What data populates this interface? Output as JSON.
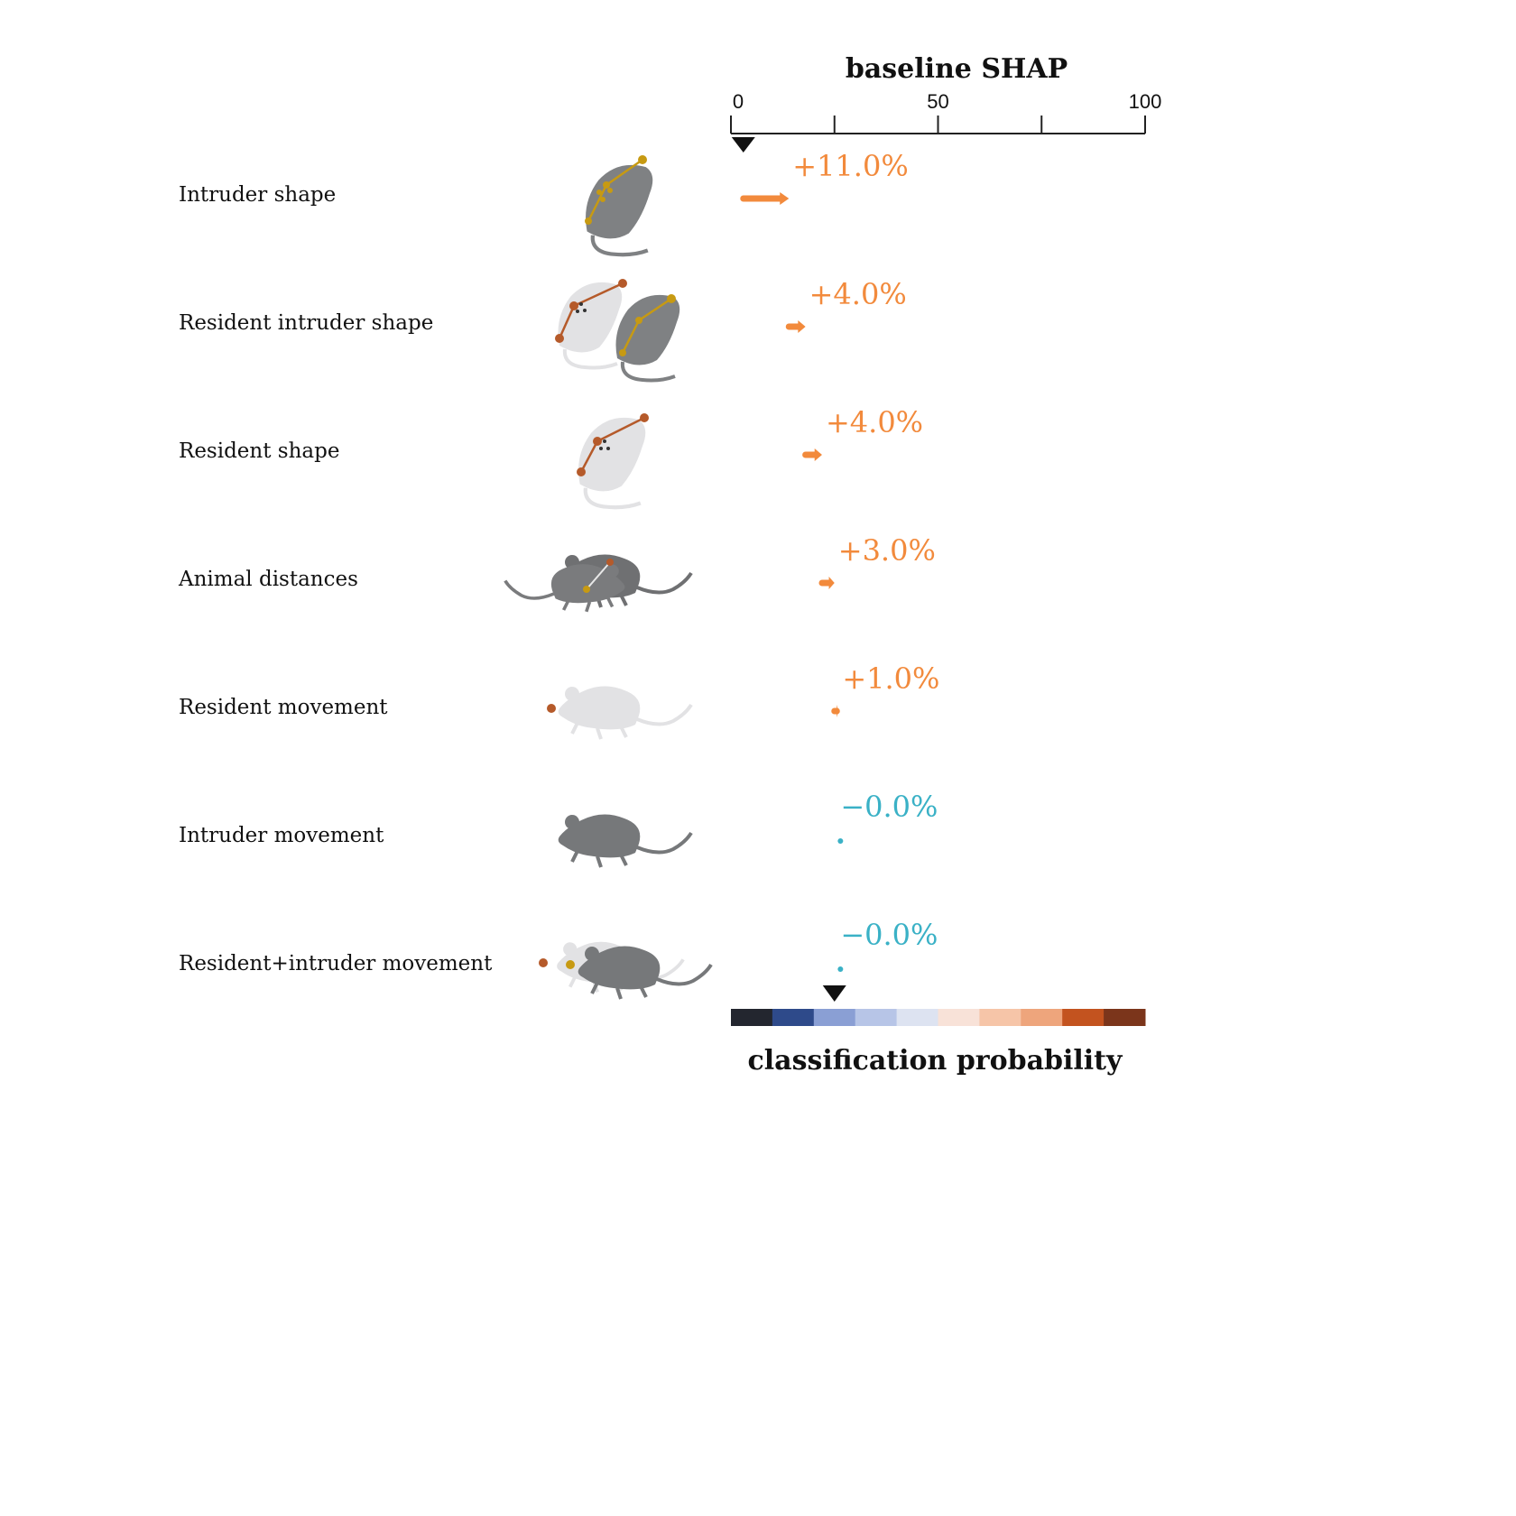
{
  "chart_data": {
    "type": "bar",
    "title": "baseline SHAP",
    "xlim": [
      0,
      100
    ],
    "x_tick_labels": [
      "0",
      "50",
      "100"
    ],
    "x_ticks": [
      0,
      25,
      50,
      75,
      100
    ],
    "baseline": 3,
    "final_value": 25,
    "colorbar_label": "classification probability",
    "colorbar_colors": [
      "#23262f",
      "#2e4a8a",
      "#8a9fd4",
      "#b7c5e7",
      "#dde3f1",
      "#f8e2d8",
      "#f6c5a8",
      "#eea57c",
      "#c3531f",
      "#7b351b"
    ],
    "positive_color": "#f28a3c",
    "negative_color": "#3ab1c6",
    "features": [
      {
        "name": "Intruder shape",
        "value_label": "+11.0%",
        "delta": 11,
        "icon": "intruder-shape-icon"
      },
      {
        "name": "Resident intruder shape",
        "value_label": "+4.0%",
        "delta": 4,
        "icon": "resident-intruder-shape-icon"
      },
      {
        "name": "Resident shape",
        "value_label": "+4.0%",
        "delta": 4,
        "icon": "resident-shape-icon"
      },
      {
        "name": "Animal distances",
        "value_label": "+3.0%",
        "delta": 3,
        "icon": "animal-distances-icon"
      },
      {
        "name": "Resident movement",
        "value_label": "+1.0%",
        "delta": 1,
        "icon": "resident-movement-icon"
      },
      {
        "name": "Intruder movement",
        "value_label": "−0.0%",
        "delta": 0,
        "icon": "intruder-movement-icon"
      },
      {
        "name": "Resident+intruder movement",
        "value_label": "−0.0%",
        "delta": 0,
        "icon": "resident-intruder-movement-icon"
      }
    ]
  }
}
